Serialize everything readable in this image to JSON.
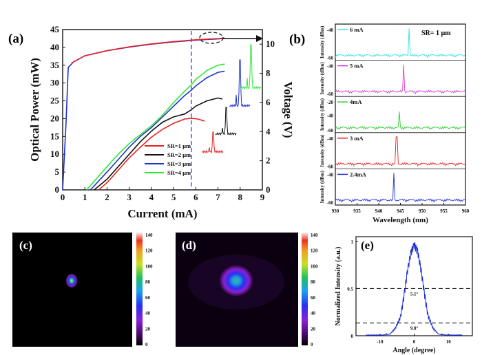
{
  "chart_data": [
    {
      "panel": "(a)",
      "type": "line",
      "xlabel": "Current (mA)",
      "ylabel": "Optical Power (mW)",
      "y2label": "Voltage (V)",
      "xlim": [
        0,
        9
      ],
      "ylim": [
        0,
        45
      ],
      "y2lim": [
        0,
        11
      ],
      "xticks": [
        "0",
        "1",
        "2",
        "3",
        "4",
        "5",
        "6",
        "7",
        "8",
        "9"
      ],
      "yticks": [
        "0",
        "5",
        "10",
        "15",
        "20",
        "25",
        "30",
        "35",
        "40",
        "45"
      ],
      "y2ticks": [
        "0",
        "2",
        "4",
        "6",
        "8",
        "10"
      ],
      "legend_position": "lower-center",
      "series": [
        {
          "name": "SR=1 µm",
          "color": "#e8201f",
          "x": [
            1.62,
            2,
            2.5,
            3,
            3.5,
            4,
            4.5,
            5,
            5.5,
            5.8,
            6.1,
            6.4
          ],
          "y": [
            0,
            2,
            5.5,
            9,
            12,
            14.8,
            17,
            18.7,
            19.9,
            20.1,
            19.9,
            19.3
          ]
        },
        {
          "name": "SR=2 µm",
          "color": "#111111",
          "x": [
            1.42,
            2,
            2.5,
            3,
            3.5,
            4,
            4.5,
            5,
            5.5,
            5.8,
            6,
            6.5,
            7,
            7.2
          ],
          "y": [
            0,
            3,
            6.5,
            10,
            13.5,
            16.5,
            19,
            20.5,
            21.3,
            22.5,
            23.5,
            25,
            25.8,
            25.5
          ]
        },
        {
          "name": "SR=3 µm",
          "color": "#1c2fd1",
          "x": [
            1.25,
            2,
            2.5,
            3,
            3.5,
            4,
            4.5,
            5,
            5.5,
            5.8,
            6,
            6.5,
            7,
            7.3
          ],
          "y": [
            0,
            5,
            8.5,
            12,
            15,
            17.5,
            20.5,
            23.5,
            26.5,
            28,
            29.2,
            31.5,
            33,
            33.3
          ]
        },
        {
          "name": "SR=4 µm",
          "color": "#2ee834",
          "x": [
            1.08,
            2,
            2.5,
            3,
            3.5,
            4,
            4.5,
            5,
            5.5,
            5.8,
            6,
            6.5,
            7,
            7.3
          ],
          "y": [
            0,
            6.5,
            10,
            13,
            15.5,
            18,
            21,
            24.5,
            27.7,
            29.5,
            31,
            33.5,
            35,
            35.3
          ]
        },
        {
          "name": "Voltage",
          "color": "#1c2fd1",
          "axis": "right",
          "x": [
            0,
            0.15,
            0.25,
            0.5,
            1,
            2,
            3,
            4,
            5,
            6,
            7,
            7.3
          ],
          "y": [
            0,
            4.5,
            8.4,
            8.8,
            9.2,
            9.55,
            9.8,
            10,
            10.15,
            10.28,
            10.36,
            10.4
          ]
        },
        {
          "name": "Voltage (SR=1 µm)",
          "color": "#e8201f",
          "axis": "right",
          "x": [
            0.4,
            1,
            2,
            3,
            4,
            5,
            6,
            7,
            7.3
          ],
          "y": [
            8.7,
            9.2,
            9.55,
            9.82,
            10.02,
            10.18,
            10.3,
            10.38,
            10.42
          ]
        }
      ],
      "annotations": [
        {
          "type": "vline",
          "x": 5.8,
          "color": "#7a3df0",
          "style": "dashed"
        },
        {
          "type": "ellipse-arrow",
          "label": "",
          "points_to": "Voltage axis"
        }
      ]
    },
    {
      "panel": "(b)",
      "type": "line",
      "xlabel": "Wavelength (nm)",
      "ylabel": "Intensity (dBm)",
      "title": "SR= 1 µm",
      "xlim": [
        930,
        960
      ],
      "xticks": [
        "930",
        "935",
        "940",
        "945",
        "950",
        "955",
        "960"
      ],
      "series": [
        {
          "name": "6 mA",
          "color": "#36e0e0",
          "peak_x": 947.0,
          "yticks": [
            "-40",
            "-60"
          ]
        },
        {
          "name": "5 mA",
          "color": "#d63ad6",
          "peak_x": 945.8,
          "yticks": [
            "-40",
            "-60"
          ]
        },
        {
          "name": "4mA",
          "color": "#2ecc2e",
          "peak_x": 944.8,
          "yticks": [
            "-20",
            "-40",
            "-60"
          ]
        },
        {
          "name": "3 mA",
          "color": "#e8201f",
          "peak_x": 944.1,
          "yticks": [
            "-40",
            "-60"
          ]
        },
        {
          "name": "2.4mA",
          "color": "#1c2fd1",
          "peak_x": 943.5,
          "yticks": [
            "-40",
            "-60"
          ]
        }
      ]
    },
    {
      "panel": "(c)",
      "type": "heatmap",
      "colorbar_ticks": [
        "140",
        "120",
        "100",
        "80",
        "60",
        "40",
        "20",
        "0"
      ],
      "colorbar_range": [
        0,
        140
      ]
    },
    {
      "panel": "(d)",
      "type": "heatmap",
      "colorbar_ticks": [
        "140",
        "120",
        "100",
        "80",
        "60",
        "40",
        "20",
        "0"
      ],
      "colorbar_range": [
        0,
        140
      ]
    },
    {
      "panel": "(e)",
      "type": "line",
      "xlabel": "Angle (degree)",
      "ylabel": "Normalized Intensity (a.u.)",
      "xlim": [
        -17,
        17
      ],
      "ylim": [
        0,
        1.05
      ],
      "xticks": [
        "-10",
        "0",
        "10"
      ],
      "yticks": [
        "0",
        "0.5",
        "1"
      ],
      "series": [
        {
          "name": "profile",
          "color": "#1c2fd1",
          "x": [
            -14,
            -9,
            -7,
            -5.5,
            -4,
            -3,
            -2,
            -1,
            0,
            1,
            2,
            3,
            4,
            5.5,
            7,
            9,
            14
          ],
          "y": [
            0,
            0,
            0.02,
            0.08,
            0.2,
            0.42,
            0.68,
            0.88,
            0.97,
            0.9,
            0.7,
            0.45,
            0.22,
            0.08,
            0.02,
            0,
            0
          ]
        }
      ],
      "annotations": [
        {
          "type": "hline",
          "y": 0.5,
          "label": "5.1°"
        },
        {
          "type": "hline",
          "y": 0.135,
          "label": "9.8°"
        }
      ]
    }
  ]
}
